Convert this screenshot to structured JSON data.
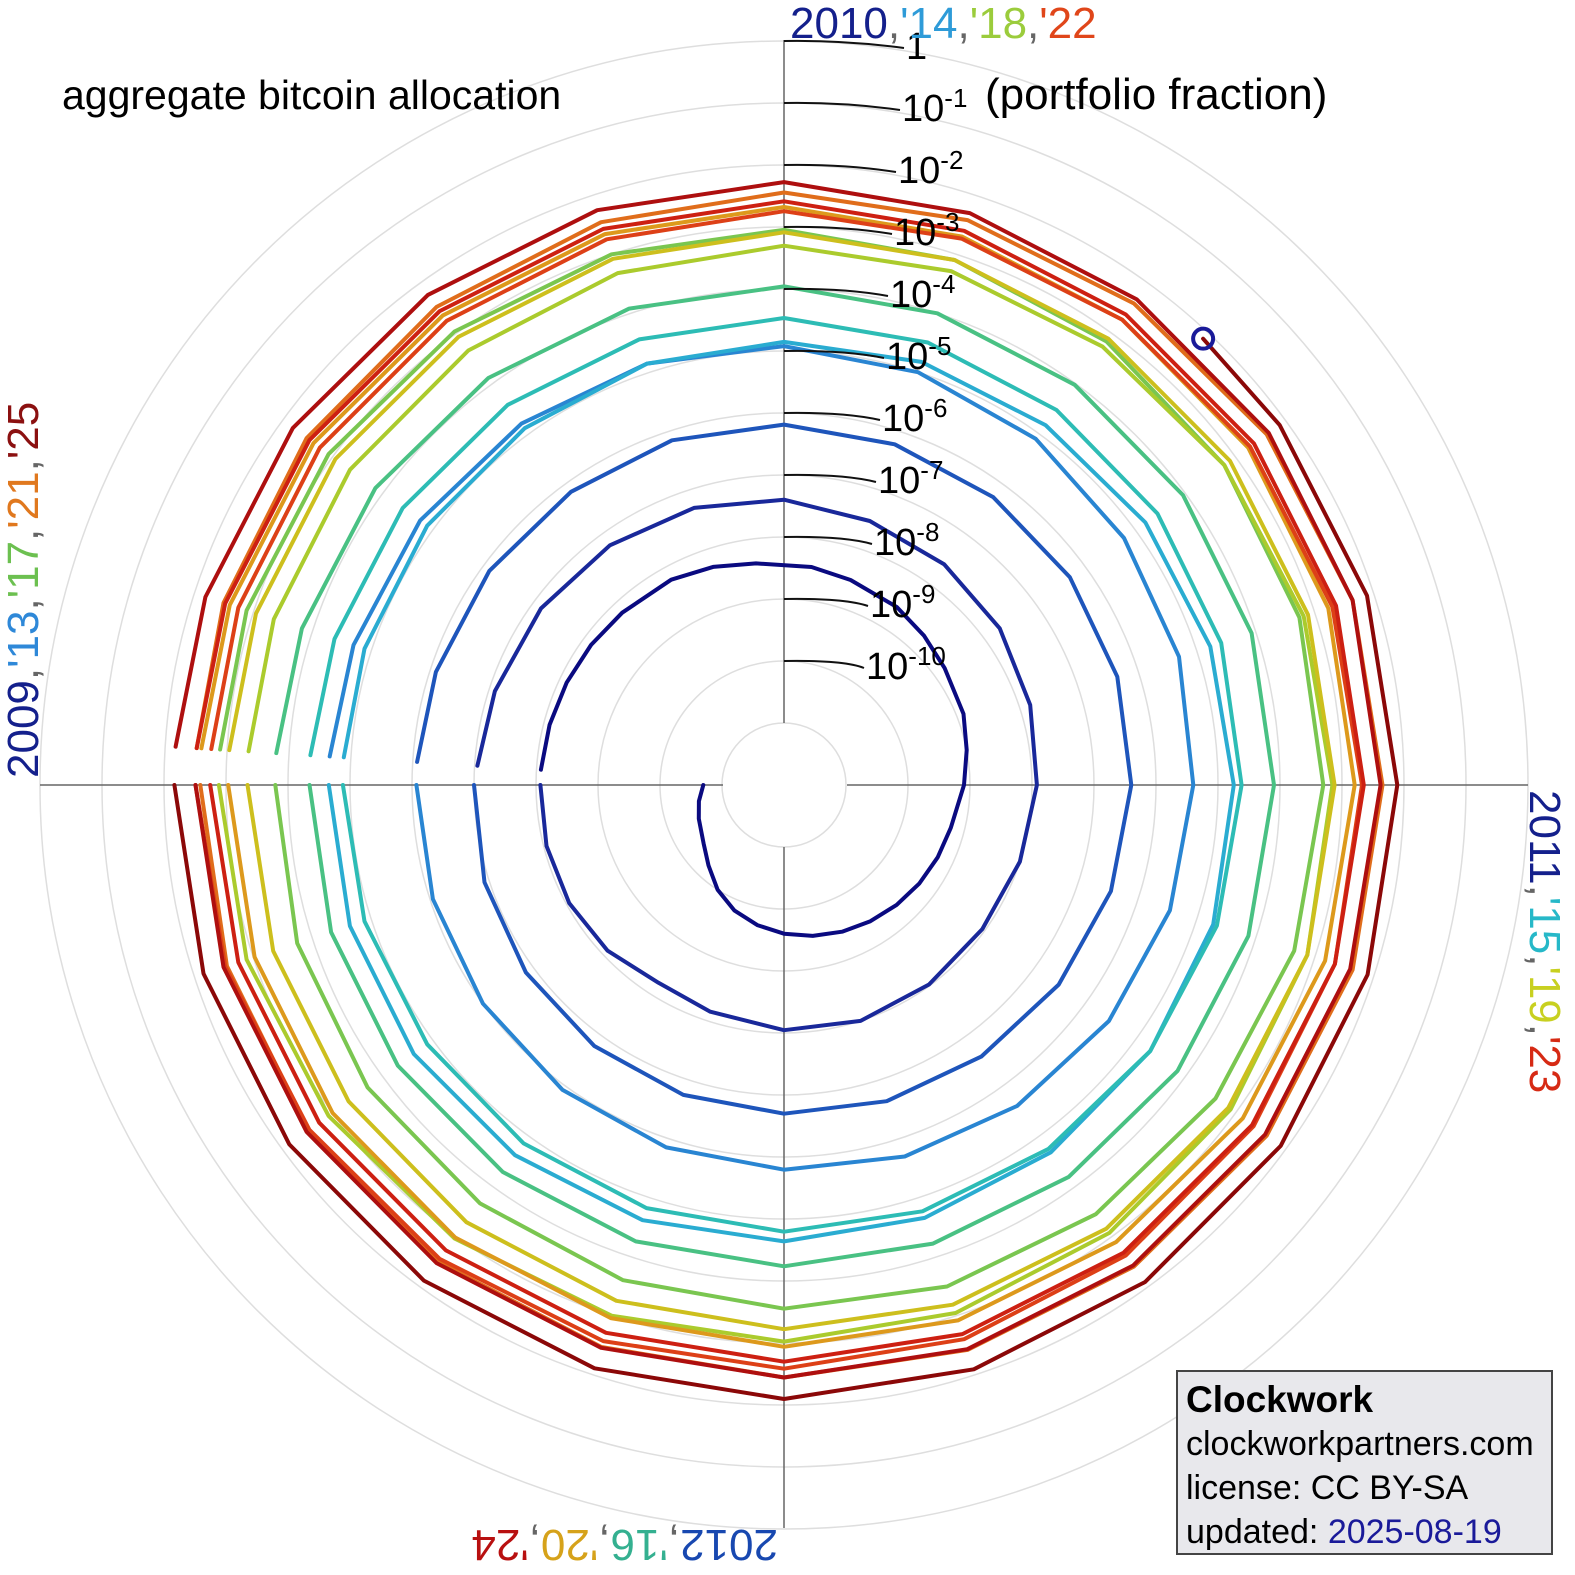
{
  "chart_data": {
    "type": "polar-line",
    "title": "aggregate bitcoin allocation",
    "unit_label": "(portfolio fraction)",
    "angle_unit": "year",
    "radial_scale": "log10",
    "radial_range": [
      1e-11,
      1
    ],
    "radial_ticks": [
      {
        "value": 1,
        "mantissa": "1",
        "exponent": ""
      },
      {
        "value": 0.1,
        "mantissa": "10",
        "exponent": "-1"
      },
      {
        "value": 0.01,
        "mantissa": "10",
        "exponent": "-2"
      },
      {
        "value": 0.001,
        "mantissa": "10",
        "exponent": "-3"
      },
      {
        "value": 0.0001,
        "mantissa": "10",
        "exponent": "-4"
      },
      {
        "value": 1e-05,
        "mantissa": "10",
        "exponent": "-5"
      },
      {
        "value": 1e-06,
        "mantissa": "10",
        "exponent": "-6"
      },
      {
        "value": 1e-07,
        "mantissa": "10",
        "exponent": "-7"
      },
      {
        "value": 1e-08,
        "mantissa": "10",
        "exponent": "-8"
      },
      {
        "value": 1e-09,
        "mantissa": "10",
        "exponent": "-9"
      },
      {
        "value": 1e-10,
        "mantissa": "10",
        "exponent": "-10"
      }
    ],
    "grid": true,
    "quadrant_labels": {
      "top": [
        "2010",
        ",",
        "'14",
        ",",
        "'18",
        ",",
        "'22"
      ],
      "right": [
        "2011",
        ",",
        "'15",
        ",",
        "'19",
        ",",
        "'23"
      ],
      "bottom": [
        "2012",
        ",",
        "'16",
        ",",
        "'20",
        ",",
        "'24"
      ],
      "left": [
        "2009",
        ",",
        "'13",
        ",",
        "'17",
        ",",
        "'21",
        ",",
        "'25"
      ]
    },
    "quadrant_colors": {
      "top": [
        "#14208c",
        "#666666",
        "#2e9bd8",
        "#666666",
        "#9bcc3c",
        "#666666",
        "#e0461a"
      ],
      "right": [
        "#14208c",
        "#666666",
        "#26b8c8",
        "#666666",
        "#c8d020",
        "#666666",
        "#d62a14"
      ],
      "bottom": [
        "#1848b0",
        "#666666",
        "#34b090",
        "#666666",
        "#d6a21a",
        "#666666",
        "#b81010"
      ],
      "left": [
        "#14208c",
        "#666666",
        "#2e88d8",
        "#666666",
        "#6cc050",
        "#666666",
        "#e0781e",
        "#666666",
        "#8b1010"
      ]
    },
    "series": [
      {
        "x": [
          2010.0,
          2010.03,
          2010.06,
          2010.1,
          2010.13,
          2010.16,
          2010.19,
          2010.22,
          2010.25,
          2010.28,
          2010.31,
          2010.34,
          2010.37,
          2010.4,
          2010.43,
          2010.46,
          2010.5,
          2010.53,
          2010.56,
          2010.6,
          2010.63,
          2010.66,
          2010.7,
          2010.73,
          2010.77,
          2010.8,
          2010.83,
          2010.87,
          2010.9,
          2010.93,
          2010.96,
          2010.99
        ],
        "y": [
          2e-11,
          2.5e-11,
          3e-11,
          4e-11,
          6e-11,
          1e-10,
          1.5e-10,
          2e-10,
          2.5e-10,
          3e-10,
          3.5e-10,
          4e-10,
          4.5e-10,
          5e-10,
          5.5e-10,
          6e-10,
          8e-10,
          1e-09,
          1.3e-09,
          1.6e-09,
          2e-09,
          2.5e-09,
          3e-09,
          3.5e-09,
          4e-09,
          5e-09,
          6e-09,
          6.5e-09,
          7e-09,
          7.5e-09,
          8e-09,
          8.5e-09
        ]
      },
      {
        "x": [
          2011.0,
          2011.04,
          2011.08,
          2011.12,
          2011.16,
          2011.2,
          2011.25,
          2011.3,
          2011.35,
          2011.4,
          2011.45,
          2011.5,
          2011.55,
          2011.6,
          2011.65,
          2011.7,
          2011.75,
          2011.8,
          2011.85,
          2011.9,
          2011.95,
          2011.99
        ],
        "y": [
          8.5e-09,
          9e-09,
          9e-09,
          8e-09,
          6e-09,
          7e-09,
          9e-09,
          1e-08,
          9.5e-09,
          9e-09,
          1e-08,
          1.2e-08,
          1.5e-08,
          2e-08,
          2.5e-08,
          3e-08,
          4e-08,
          5e-08,
          6e-08,
          7e-08,
          8e-08,
          9e-08
        ]
      },
      {
        "x": [
          2012.0,
          2012.05,
          2012.1,
          2012.15,
          2012.2,
          2012.25,
          2012.3,
          2012.35,
          2012.4,
          2012.45,
          2012.5,
          2012.55,
          2012.6,
          2012.65,
          2012.7,
          2012.75,
          2012.8,
          2012.85,
          2012.9,
          2012.95,
          2012.99
        ],
        "y": [
          1e-07,
          1.2e-07,
          1.4e-07,
          1.6e-07,
          1.8e-07,
          2e-07,
          2.3e-07,
          2.6e-07,
          3e-07,
          3.5e-07,
          4e-07,
          4.5e-07,
          5e-07,
          5.5e-07,
          6e-07,
          6.5e-07,
          7e-07,
          7e-07,
          7.5e-07,
          8e-07,
          8.5e-07
        ]
      },
      {
        "x": [
          2013.0,
          2013.05,
          2013.1,
          2013.15,
          2013.2,
          2013.25,
          2013.3,
          2013.35,
          2013.4,
          2013.45,
          2013.5,
          2013.55,
          2013.6,
          2013.65,
          2013.7,
          2013.75,
          2013.8,
          2013.85,
          2013.9,
          2013.95,
          2013.99
        ],
        "y": [
          8.5e-07,
          9e-07,
          1e-06,
          1.2e-06,
          1.4e-06,
          1.6e-06,
          2e-06,
          2.5e-06,
          3e-06,
          3.5e-06,
          4e-06,
          5e-06,
          6e-06,
          8e-06,
          1e-05,
          1.2e-05,
          1.4e-05,
          1.6e-05,
          1.8e-05,
          2e-05,
          2.2e-05
        ]
      },
      {
        "x": [
          2014.0,
          2014.05,
          2014.1,
          2014.15,
          2014.2,
          2014.25,
          2014.3,
          2014.35,
          2014.4,
          2014.45,
          2014.5,
          2014.55,
          2014.6,
          2014.65,
          2014.7,
          2014.75,
          2014.8,
          2014.85,
          2014.9,
          2014.95,
          2014.99
        ],
        "y": [
          2.2e-05,
          2.3e-05,
          2.4e-05,
          2.4e-05,
          2.4e-05,
          2.3e-05,
          2.2e-05,
          2.1e-05,
          2e-05,
          1.9e-05,
          1.8e-05,
          1.7e-05,
          1.6e-05,
          1.5e-05,
          1.5e-05,
          1.4e-05,
          1.4e-05,
          1.3e-05,
          1.3e-05,
          1.3e-05,
          1.3e-05
        ]
      },
      {
        "x": [
          2015.0,
          2015.05,
          2015.1,
          2015.15,
          2015.2,
          2015.25,
          2015.3,
          2015.35,
          2015.4,
          2015.45,
          2015.5,
          2015.55,
          2015.6,
          2015.65,
          2015.7,
          2015.75,
          2015.8,
          2015.85,
          2015.9,
          2015.95,
          2015.99
        ],
        "y": [
          1.3e-05,
          1.3e-05,
          1.3e-05,
          1.4e-05,
          1.5e-05,
          1.6e-05,
          1.7e-05,
          1.8e-05,
          2e-05,
          2.2e-05,
          2.4e-05,
          2.6e-05,
          2.8e-05,
          3e-05,
          3.2e-05,
          3.4e-05,
          3.6e-05,
          3.8e-05,
          4e-05,
          4.2e-05,
          4.5e-05
        ]
      },
      {
        "x": [
          2016.0,
          2016.05,
          2016.1,
          2016.15,
          2016.2,
          2016.25,
          2016.3,
          2016.35,
          2016.4,
          2016.45,
          2016.5,
          2016.55,
          2016.6,
          2016.65,
          2016.7,
          2016.75,
          2016.8,
          2016.85,
          2016.9,
          2016.95,
          2016.99
        ],
        "y": [
          4.5e-05,
          4.8e-05,
          5e-05,
          5.2e-05,
          5.5e-05,
          5.8e-05,
          6e-05,
          6.5e-05,
          7e-05,
          7.5e-05,
          8e-05,
          8.5e-05,
          9e-05,
          9.5e-05,
          0.0001,
          0.00011,
          0.00012,
          0.00013,
          0.00014,
          0.00015,
          0.00016
        ]
      },
      {
        "x": [
          2017.0,
          2017.05,
          2017.1,
          2017.15,
          2017.2,
          2017.25,
          2017.3,
          2017.35,
          2017.4,
          2017.45,
          2017.5,
          2017.55,
          2017.6,
          2017.65,
          2017.7,
          2017.75,
          2017.8,
          2017.85,
          2017.9,
          2017.95,
          2017.99
        ],
        "y": [
          0.00016,
          0.00018,
          0.0002,
          0.00022,
          0.00025,
          0.00028,
          0.00032,
          0.00036,
          0.0004,
          0.00045,
          0.0005,
          0.00055,
          0.0006,
          0.0007,
          0.0008,
          0.0009,
          0.001,
          0.0011,
          0.0012,
          0.0013,
          0.0013
        ]
      },
      {
        "x": [
          2018.0,
          2018.05,
          2018.1,
          2018.15,
          2018.2,
          2018.25,
          2018.3,
          2018.35,
          2018.4,
          2018.45,
          2018.5,
          2018.55,
          2018.6,
          2018.65,
          2018.7,
          2018.75,
          2018.8,
          2018.85,
          2018.9,
          2018.95,
          2018.99
        ],
        "y": [
          0.0013,
          0.0013,
          0.0012,
          0.0011,
          0.001,
          0.00095,
          0.0009,
          0.00085,
          0.0008,
          0.00075,
          0.0007,
          0.00065,
          0.0006,
          0.00055,
          0.00052,
          0.0005,
          0.00048,
          0.00046,
          0.00045,
          0.00045,
          0.00045
        ]
      },
      {
        "x": [
          2019.0,
          2019.05,
          2019.1,
          2019.15,
          2019.2,
          2019.25,
          2019.3,
          2019.35,
          2019.4,
          2019.45,
          2019.5,
          2019.55,
          2019.6,
          2019.65,
          2019.7,
          2019.75,
          2019.8,
          2019.85,
          2019.9,
          2019.95,
          2019.99
        ],
        "y": [
          0.00045,
          0.00046,
          0.00048,
          0.00052,
          0.00056,
          0.0006,
          0.00065,
          0.0007,
          0.00072,
          0.00075,
          0.00076,
          0.00077,
          0.00078,
          0.00079,
          0.0008,
          0.00082,
          0.00084,
          0.00086,
          0.00088,
          0.0009,
          0.00092
        ]
      },
      {
        "x": [
          2020.0,
          2020.05,
          2020.1,
          2020.15,
          2020.2,
          2020.25,
          2020.3,
          2020.35,
          2020.4,
          2020.45,
          2020.5,
          2020.55,
          2020.6,
          2020.65,
          2020.7,
          2020.75,
          2020.8,
          2020.85,
          2020.9,
          2020.95,
          2020.99
        ],
        "y": [
          0.00092,
          0.00095,
          0.001,
          0.00105,
          0.0011,
          0.00115,
          0.0012,
          0.0013,
          0.0014,
          0.0015,
          0.0016,
          0.0017,
          0.0018,
          0.0019,
          0.002,
          0.0021,
          0.0022,
          0.0023,
          0.0024,
          0.0025,
          0.0026
        ]
      },
      {
        "x": [
          2021.0,
          2021.05,
          2021.1,
          2021.15,
          2021.2,
          2021.25,
          2021.3,
          2021.35,
          2021.4,
          2021.45,
          2021.5,
          2021.55,
          2021.6,
          2021.65,
          2021.7,
          2021.75,
          2021.8,
          2021.85,
          2021.9,
          2021.95,
          2021.99
        ],
        "y": [
          0.0026,
          0.0028,
          0.003,
          0.0032,
          0.0034,
          0.0036,
          0.0038,
          0.004,
          0.0042,
          0.0044,
          0.0045,
          0.0044,
          0.0042,
          0.004,
          0.0038,
          0.0036,
          0.0035,
          0.0034,
          0.0033,
          0.0032,
          0.0031
        ]
      },
      {
        "x": [
          2022.0,
          2022.05,
          2022.1,
          2022.15,
          2022.2,
          2022.25,
          2022.3,
          2022.35,
          2022.4,
          2022.45,
          2022.5,
          2022.55,
          2022.6,
          2022.65,
          2022.7,
          2022.75,
          2022.8,
          2022.85,
          2022.9,
          2022.95,
          2022.99
        ],
        "y": [
          0.0031,
          0.003,
          0.0029,
          0.0028,
          0.0027,
          0.0026,
          0.0025,
          0.0024,
          0.0023,
          0.0022,
          0.0021,
          0.002,
          0.00195,
          0.0019,
          0.00185,
          0.0018,
          0.0018,
          0.0018,
          0.0018,
          0.0018,
          0.0018
        ]
      },
      {
        "x": [
          2023.0,
          2023.05,
          2023.1,
          2023.15,
          2023.2,
          2023.25,
          2023.3,
          2023.35,
          2023.4,
          2023.45,
          2023.5,
          2023.55,
          2023.6,
          2023.65,
          2023.7,
          2023.75,
          2023.8,
          2023.85,
          2023.9,
          2023.95,
          2023.99
        ],
        "y": [
          0.0018,
          0.0018,
          0.00185,
          0.0019,
          0.00195,
          0.002,
          0.00205,
          0.0021,
          0.00215,
          0.0022,
          0.00225,
          0.0023,
          0.00235,
          0.0024,
          0.0025,
          0.0026,
          0.0027,
          0.0028,
          0.0029,
          0.003,
          0.0031
        ]
      },
      {
        "x": [
          2024.0,
          2024.05,
          2024.1,
          2024.15,
          2024.2,
          2024.25,
          2024.3,
          2024.35,
          2024.4,
          2024.45,
          2024.5,
          2024.55,
          2024.6,
          2024.65,
          2024.7,
          2024.75,
          2024.8,
          2024.85,
          2024.9,
          2024.95,
          2024.99
        ],
        "y": [
          0.0031,
          0.0032,
          0.0033,
          0.0034,
          0.0035,
          0.0036,
          0.0037,
          0.0038,
          0.0039,
          0.004,
          0.0042,
          0.0044,
          0.0046,
          0.0048,
          0.005,
          0.0053,
          0.0056,
          0.0059,
          0.0062,
          0.0065,
          0.0068
        ]
      },
      {
        "x": [
          2025.0,
          2025.05,
          2025.1,
          2025.15,
          2025.2,
          2025.25,
          2025.3,
          2025.35,
          2025.4,
          2025.45,
          2025.5,
          2025.55,
          2025.6,
          2025.63
        ],
        "y": [
          0.0068,
          0.007,
          0.0073,
          0.0076,
          0.0078,
          0.008,
          0.0081,
          0.0081,
          0.008,
          0.0079,
          0.0078,
          0.0077,
          0.0076,
          0.0075
        ]
      }
    ],
    "current_marker": {
      "x": 2025.63,
      "y": 0.0075,
      "color": "#1a1a99"
    }
  },
  "infobox": {
    "name": "Clockwork",
    "website": "clockworkpartners.com",
    "license": "license: CC BY-SA",
    "updated_label": "updated:",
    "updated_date": "2025-08-19"
  }
}
